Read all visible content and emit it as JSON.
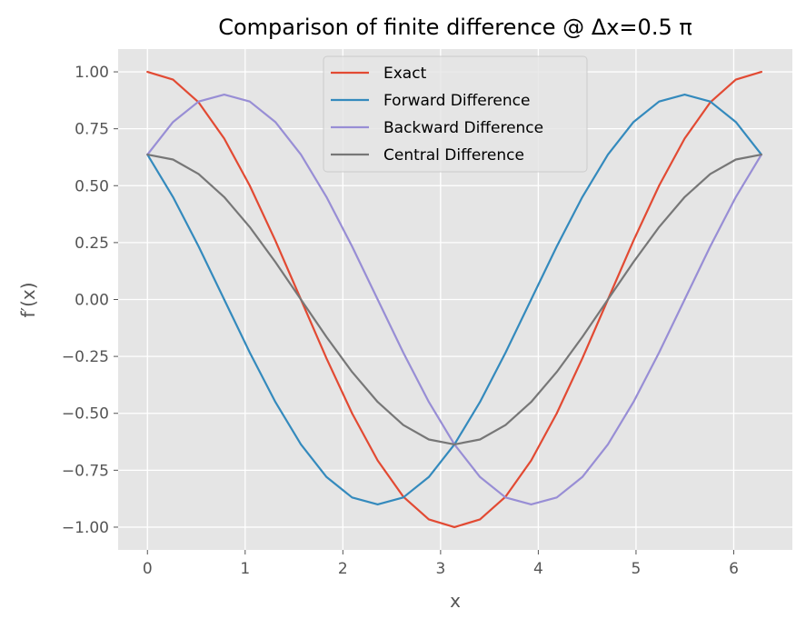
{
  "chart_data": {
    "type": "line",
    "title": "Comparison of finite difference @ Δx=0.5 π",
    "xlabel": "x",
    "ylabel": "f′(x)",
    "xlim": [
      -0.3,
      6.6
    ],
    "ylim": [
      -1.1,
      1.1
    ],
    "x_ticks": [
      0,
      1,
      2,
      3,
      4,
      5,
      6
    ],
    "x_tick_labels": [
      "0",
      "1",
      "2",
      "3",
      "4",
      "5",
      "6"
    ],
    "y_ticks": [
      1.0,
      0.75,
      0.5,
      0.25,
      0.0,
      -0.25,
      -0.5,
      -0.75,
      -1.0
    ],
    "y_tick_labels": [
      "1.00",
      "0.75",
      "0.50",
      "0.25",
      "0.00",
      "−0.25",
      "−0.50",
      "−0.75",
      "−1.00"
    ],
    "grid": true,
    "legend_position": "top-center",
    "x": [
      0.0,
      0.2618,
      0.5236,
      0.7854,
      1.0472,
      1.309,
      1.5708,
      1.8326,
      2.0944,
      2.3562,
      2.618,
      2.8798,
      3.1416,
      3.4034,
      3.6652,
      3.927,
      4.1888,
      4.4506,
      4.7124,
      4.9742,
      5.236,
      5.4978,
      5.7596,
      6.0214,
      6.2832
    ],
    "series": [
      {
        "name": "Exact",
        "color": "#e24a33",
        "values": [
          1.0,
          0.9659,
          0.866,
          0.7071,
          0.5,
          0.2588,
          0.0,
          -0.2588,
          -0.5,
          -0.7071,
          -0.866,
          -0.9659,
          -1.0,
          -0.9659,
          -0.866,
          -0.7071,
          -0.5,
          -0.2588,
          0.0,
          0.2588,
          0.5,
          0.7071,
          0.866,
          0.9659,
          1.0
        ]
      },
      {
        "name": "Forward Difference",
        "color": "#348abd",
        "values": [
          0.6366,
          0.4501,
          0.233,
          0.0,
          -0.233,
          -0.4501,
          -0.6366,
          -0.7797,
          -0.8696,
          -0.9003,
          -0.8696,
          -0.7797,
          -0.6366,
          -0.4501,
          -0.233,
          0.0,
          0.233,
          0.4501,
          0.6366,
          0.7797,
          0.8696,
          0.9003,
          0.8696,
          0.7797,
          0.6366
        ]
      },
      {
        "name": "Backward Difference",
        "color": "#988ed5",
        "values": [
          0.6366,
          0.7797,
          0.8696,
          0.9003,
          0.8696,
          0.7797,
          0.6366,
          0.4501,
          0.233,
          0.0,
          -0.233,
          -0.4501,
          -0.6366,
          -0.7797,
          -0.8696,
          -0.9003,
          -0.8696,
          -0.7797,
          -0.6366,
          -0.4501,
          -0.233,
          0.0,
          0.233,
          0.4501,
          0.6366
        ]
      },
      {
        "name": "Central Difference",
        "color": "#777777",
        "values": [
          0.6366,
          0.6149,
          0.5513,
          0.4501,
          0.3183,
          0.1648,
          0.0,
          -0.1648,
          -0.3183,
          -0.4501,
          -0.5513,
          -0.6149,
          -0.6366,
          -0.6149,
          -0.5513,
          -0.4501,
          -0.3183,
          -0.1648,
          0.0,
          0.1648,
          0.3183,
          0.4501,
          0.5513,
          0.6149,
          0.6366
        ]
      }
    ]
  }
}
